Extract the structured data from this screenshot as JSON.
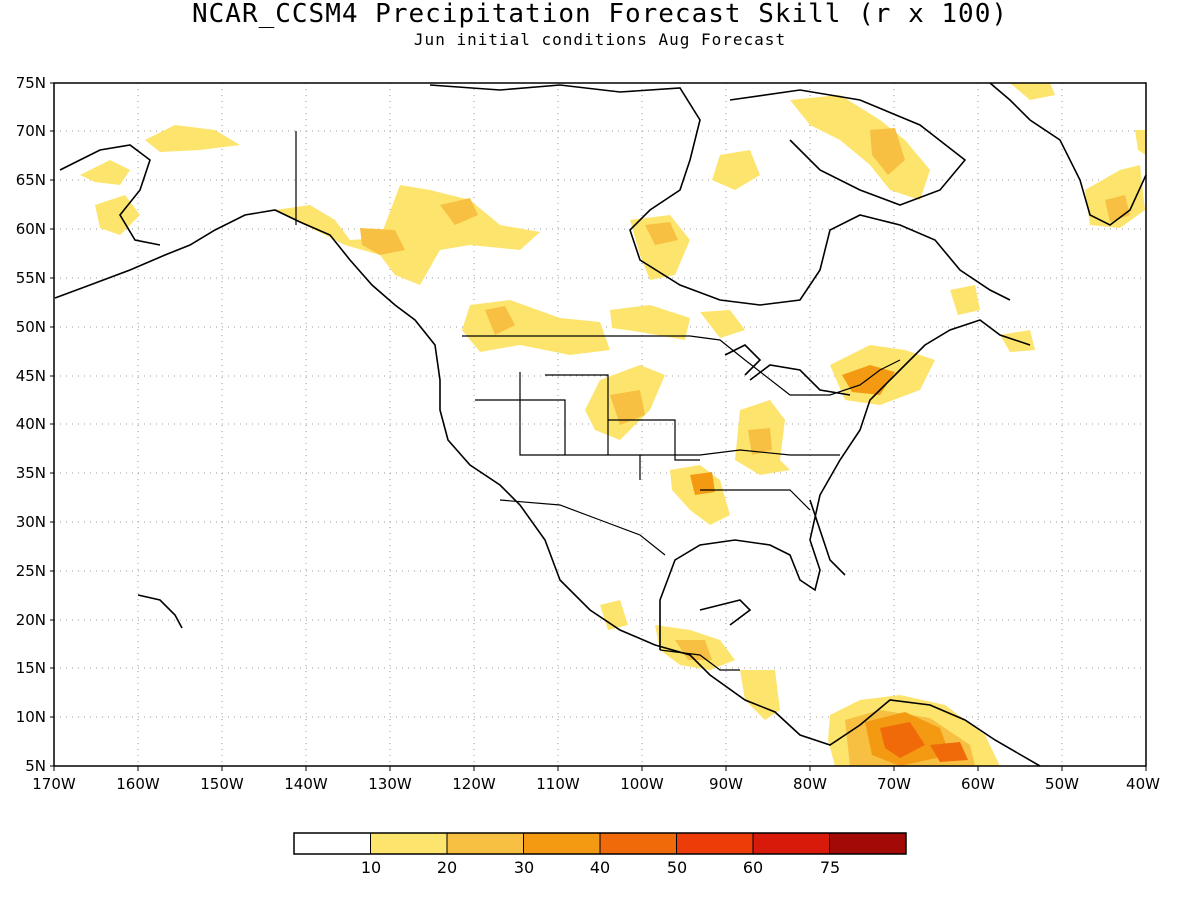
{
  "title": "NCAR_CCSM4 Precipitation Forecast Skill (r x 100)",
  "subtitle": "Jun initial conditions  Aug Forecast",
  "lat_labels": [
    "75N",
    "70N",
    "65N",
    "60N",
    "55N",
    "50N",
    "45N",
    "40N",
    "35N",
    "30N",
    "25N",
    "20N",
    "15N",
    "10N",
    "5N"
  ],
  "lon_labels": [
    "170W",
    "160W",
    "150W",
    "140W",
    "130W",
    "120W",
    "110W",
    "100W",
    "90W",
    "80W",
    "70W",
    "60W",
    "50W",
    "40W"
  ],
  "colorbar": {
    "labels": [
      "10",
      "20",
      "30",
      "40",
      "50",
      "60",
      "75"
    ],
    "colors": [
      "#ffffff",
      "#fde46c",
      "#f7c042",
      "#f39a12",
      "#f16a0a",
      "#ee3c08",
      "#d81a0a",
      "#a10a06"
    ]
  },
  "map": {
    "lon_range": [
      -170,
      -40
    ],
    "lat_range": [
      5,
      75
    ],
    "land_outline_color": "#000000",
    "grid": "dotted"
  }
}
